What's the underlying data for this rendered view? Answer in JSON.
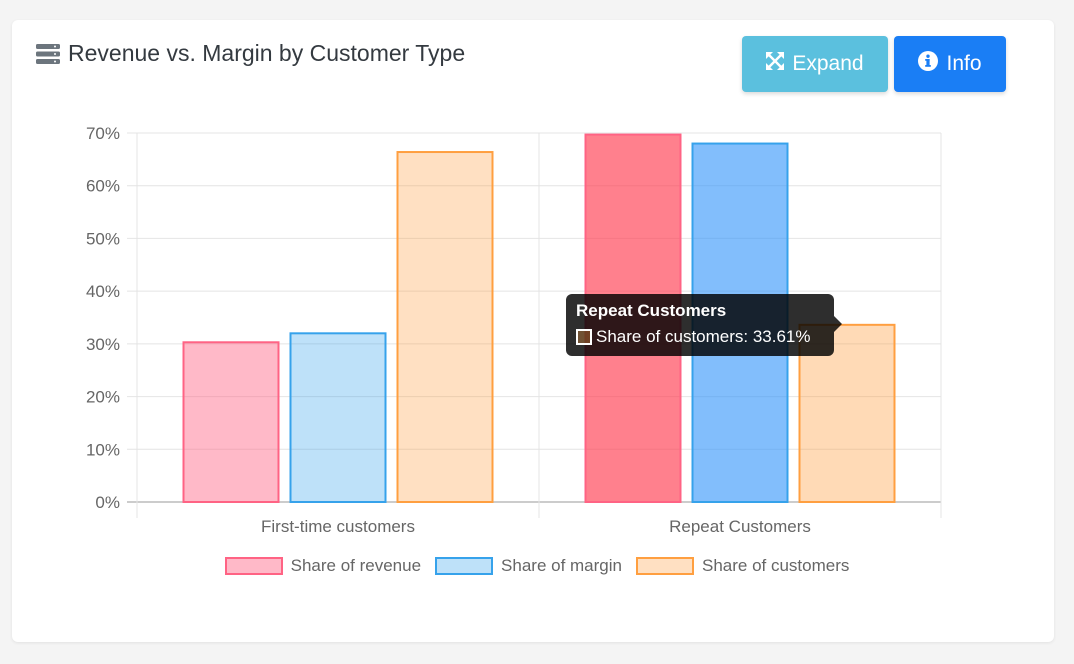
{
  "header": {
    "title": "Revenue vs. Margin by Customer Type",
    "icon": "server-icon"
  },
  "buttons": {
    "expand_label": "Expand",
    "expand_icon": "expand-arrows-icon",
    "info_label": "Info",
    "info_icon": "info-circle-icon"
  },
  "colors": {
    "expand_button": "#5bc0de",
    "info_button": "#1a7ef5",
    "revenue_border": "#ff6384",
    "margin_border": "#36a2eb",
    "customers_border": "#ff9f40"
  },
  "tooltip": {
    "title": "Repeat Customers",
    "text": "Share of customers: 33.61%"
  },
  "chart_data": {
    "type": "bar",
    "title": "Revenue vs. Margin by Customer Type",
    "categories": [
      "First-time customers",
      "Repeat Customers"
    ],
    "series": [
      {
        "name": "Share of revenue",
        "values": [
          30.3,
          69.7
        ],
        "fill": "rgba(255,99,132,0.45)",
        "hover_fill": "rgba(255,60,80,0.65)",
        "border": "#ff6384"
      },
      {
        "name": "Share of margin",
        "values": [
          32.0,
          68.0
        ],
        "fill": "rgba(54,162,235,0.32)",
        "hover_fill": "rgba(54,150,250,0.62)",
        "border": "#36a2eb"
      },
      {
        "name": "Share of customers",
        "values": [
          66.39,
          33.61
        ],
        "fill": "rgba(255,159,64,0.32)",
        "hover_fill": "rgba(255,159,64,0.38)",
        "border": "#ff9f40"
      }
    ],
    "hovered_category": "Repeat Customers",
    "ylim": [
      0,
      70
    ],
    "yticks": [
      "70%",
      "60%",
      "50%",
      "40%",
      "30%",
      "20%",
      "10%",
      "0%"
    ],
    "ytick_values": [
      70,
      60,
      50,
      40,
      30,
      20,
      10,
      0
    ],
    "grid": true,
    "legend": "bottom"
  }
}
